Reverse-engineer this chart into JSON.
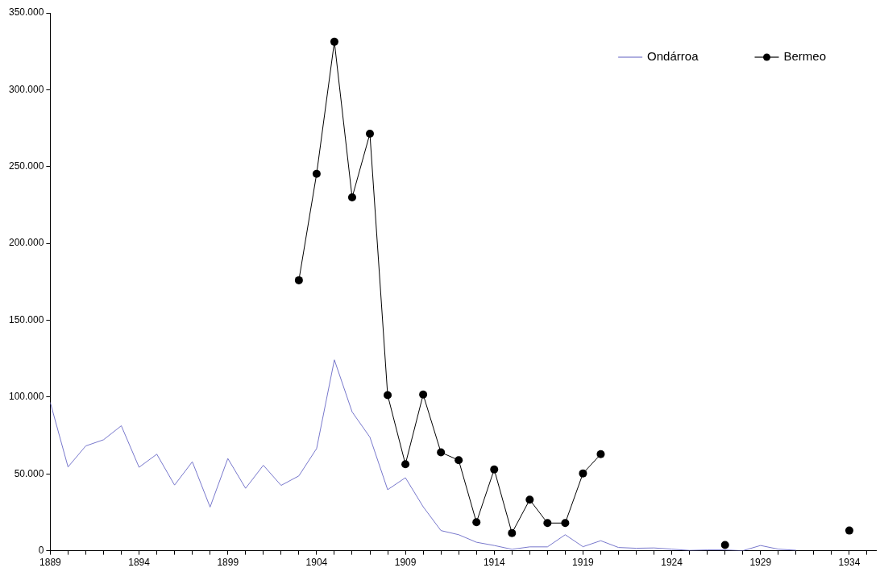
{
  "chart_data": {
    "type": "line",
    "x": [
      1889,
      1890,
      1891,
      1892,
      1893,
      1894,
      1895,
      1896,
      1897,
      1898,
      1899,
      1900,
      1901,
      1902,
      1903,
      1904,
      1905,
      1906,
      1907,
      1908,
      1909,
      1910,
      1911,
      1912,
      1913,
      1914,
      1915,
      1916,
      1917,
      1918,
      1919,
      1920,
      1921,
      1922,
      1923,
      1924,
      1925,
      1926,
      1927,
      1928,
      1929,
      1930,
      1931,
      1932,
      1933,
      1934
    ],
    "series": [
      {
        "name": "Ondárroa",
        "color": "#7878cc",
        "marker": "none",
        "values": [
          96500,
          54500,
          68200,
          72200,
          81300,
          54300,
          62800,
          42700,
          57900,
          28400,
          60000,
          40600,
          55600,
          42500,
          48700,
          66500,
          124200,
          90300,
          73900,
          39700,
          47500,
          28600,
          13100,
          10400,
          5500,
          3400,
          900,
          2500,
          2500,
          10400,
          2600,
          6500,
          2100,
          1600,
          1800,
          1000,
          200,
          500,
          500,
          0,
          3400,
          1000,
          300,
          null,
          null,
          null
        ]
      },
      {
        "name": "Bermeo",
        "color": "#000000",
        "marker": "circle",
        "values": [
          null,
          null,
          null,
          null,
          null,
          null,
          null,
          null,
          null,
          null,
          null,
          null,
          null,
          null,
          176000,
          245300,
          331200,
          229900,
          271400,
          101200,
          56300,
          101600,
          64000,
          58900,
          18500,
          52900,
          11500,
          33200,
          18000,
          18000,
          50300,
          62800,
          null,
          null,
          null,
          null,
          null,
          null,
          3700,
          null,
          null,
          null,
          null,
          null,
          null,
          13100
        ]
      }
    ],
    "xlim": [
      1889,
      1935.5
    ],
    "xticks": [
      1889,
      {
        "value": 1890,
        "label": null
      },
      {
        "value": 1891,
        "label": null
      },
      {
        "value": 1892,
        "label": null
      },
      {
        "value": 1893,
        "label": null
      },
      1894,
      {
        "value": 1895,
        "label": null
      },
      {
        "value": 1896,
        "label": null
      },
      {
        "value": 1897,
        "label": null
      },
      {
        "value": 1898,
        "label": null
      },
      1899,
      {
        "value": 1900,
        "label": null
      },
      {
        "value": 1901,
        "label": null
      },
      {
        "value": 1902,
        "label": null
      },
      {
        "value": 1903,
        "label": null
      },
      1904,
      {
        "value": 1905,
        "label": null
      },
      {
        "value": 1906,
        "label": null
      },
      {
        "value": 1907,
        "label": null
      },
      {
        "value": 1908,
        "label": null
      },
      1909,
      {
        "value": 1910,
        "label": null
      },
      {
        "value": 1911,
        "label": null
      },
      {
        "value": 1912,
        "label": null
      },
      {
        "value": 1913,
        "label": null
      },
      1914,
      {
        "value": 1915,
        "label": null
      },
      {
        "value": 1916,
        "label": null
      },
      {
        "value": 1917,
        "label": null
      },
      {
        "value": 1918,
        "label": null
      },
      1919,
      {
        "value": 1920,
        "label": null
      },
      {
        "value": 1921,
        "label": null
      },
      {
        "value": 1922,
        "label": null
      },
      {
        "value": 1923,
        "label": null
      },
      1924,
      {
        "value": 1925,
        "label": null
      },
      {
        "value": 1926,
        "label": null
      },
      {
        "value": 1927,
        "label": null
      },
      {
        "value": 1928,
        "label": null
      },
      1929,
      {
        "value": 1930,
        "label": null
      },
      {
        "value": 1931,
        "label": null
      },
      {
        "value": 1932,
        "label": null
      },
      {
        "value": 1933,
        "label": null
      },
      1934,
      {
        "value": 1935,
        "label": null
      }
    ],
    "ylim": [
      0,
      350000
    ],
    "yticks": [
      0,
      {
        "value": 50000,
        "label": "50.000"
      },
      {
        "value": 100000,
        "label": "100.000"
      },
      {
        "value": 150000,
        "label": "150.000"
      },
      {
        "value": 200000,
        "label": "200.000"
      },
      {
        "value": 250000,
        "label": "250.000"
      },
      {
        "value": 300000,
        "label": "300.000"
      },
      {
        "value": 350000,
        "label": "350.000"
      }
    ],
    "grid": false,
    "legend": "top right",
    "line_style": "solid"
  }
}
